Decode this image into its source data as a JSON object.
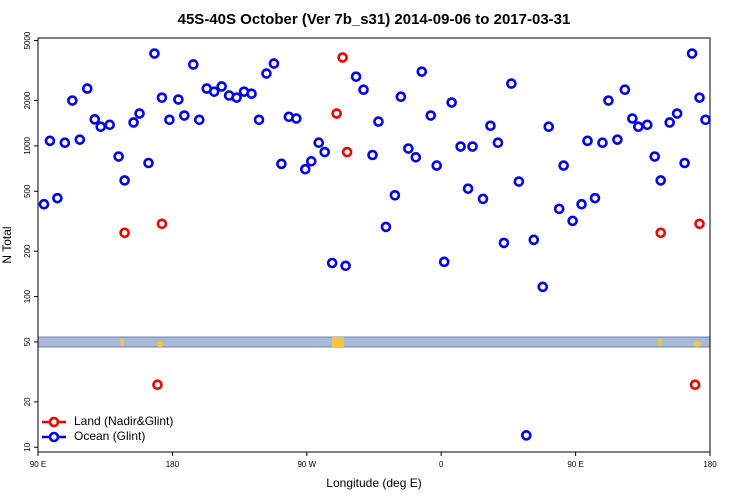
{
  "chart_data": {
    "type": "scatter",
    "title": "45S-40S October (Ver 7b_s31)   2014-09-06 to 2017-03-31",
    "x_label": "Longitude (deg E)",
    "y_label": "N Total",
    "log_y": true,
    "legend": "bottom-left",
    "xlim": [
      90,
      540
    ],
    "ylim": [
      9.3,
      5200
    ],
    "xticks": [
      {
        "value": 90,
        "label": "90 E"
      },
      180,
      {
        "value": 270,
        "label": "90 W"
      },
      {
        "value": 360,
        "label": "0"
      },
      {
        "value": 450,
        "label": "90 E"
      },
      {
        "value": 540,
        "label": "180"
      }
    ],
    "yticks": [
      10,
      20,
      50,
      100,
      200,
      500,
      1000,
      2000,
      5000
    ],
    "series": [
      {
        "name": "Land (Nadir&Glint)",
        "color": "#ee0000",
        "x": [
          148,
          173,
          290,
          294,
          297,
          170,
          507,
          533,
          530
        ],
        "values": [
          265,
          304,
          1640,
          3860,
          910,
          26,
          265,
          304,
          26
        ]
      },
      {
        "name": "Ocean (Glint)",
        "color": "#0000ee",
        "x": [
          94,
          98,
          103,
          108,
          113,
          118,
          123,
          128,
          132,
          138,
          144,
          148,
          154,
          158,
          164,
          168,
          173,
          178,
          184,
          188,
          194,
          198,
          203,
          208,
          213,
          218,
          223,
          228,
          233,
          238,
          243,
          248,
          253,
          258,
          263,
          269,
          273,
          278,
          282,
          287,
          296,
          303,
          308,
          314,
          318,
          323,
          329,
          333,
          338,
          343,
          347,
          353,
          357,
          362,
          367,
          373,
          378,
          381,
          388,
          393,
          398,
          402,
          407,
          412,
          422,
          428,
          432,
          439,
          442,
          448,
          454,
          458,
          463,
          468,
          472,
          478,
          483,
          488,
          492,
          498,
          503,
          507,
          513,
          518,
          523,
          528,
          533,
          537,
          417
        ],
        "values": [
          410,
          1080,
          450,
          1050,
          2000,
          1100,
          2400,
          1500,
          1340,
          1380,
          850,
          590,
          1430,
          1640,
          770,
          4100,
          2090,
          1490,
          2030,
          1590,
          3470,
          1490,
          2400,
          2290,
          2480,
          2160,
          2090,
          2290,
          2220,
          1490,
          3020,
          3520,
          760,
          1560,
          1520,
          700,
          790,
          1050,
          910,
          167,
          160,
          2880,
          2360,
          870,
          1450,
          290,
          470,
          2120,
          960,
          840,
          3110,
          1590,
          740,
          170,
          1940,
          990,
          520,
          990,
          445,
          1360,
          1050,
          227,
          2590,
          580,
          238,
          116,
          1340,
          382,
          740,
          318,
          410,
          1080,
          450,
          1050,
          2000,
          1100,
          2360,
          1520,
          1340,
          1380,
          850,
          590,
          1430,
          1640,
          770,
          4100,
          2090,
          1490,
          12
        ]
      }
    ]
  }
}
